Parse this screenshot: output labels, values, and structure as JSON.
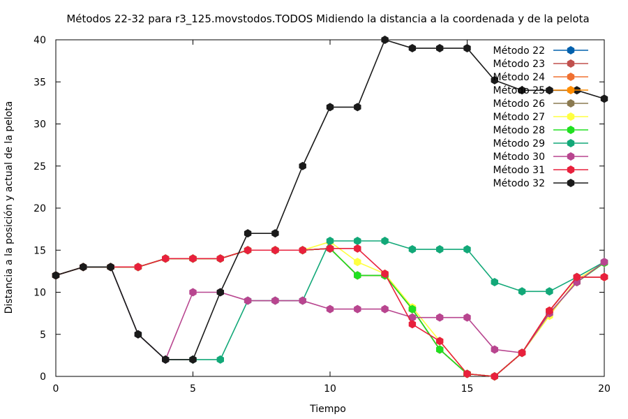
{
  "chart_data": {
    "type": "line",
    "title": "Métodos 22-32 para r3_125.movstodos.TODOS Midiendo la distancia a la coordenada y de la pelota",
    "xlabel": "Tiempo",
    "ylabel": "Distancia a la posición y actual de la pelota",
    "xlim": [
      0,
      20
    ],
    "ylim": [
      0,
      40
    ],
    "x_ticks": [
      0,
      5,
      10,
      15,
      20
    ],
    "y_ticks": [
      0,
      5,
      10,
      15,
      20,
      25,
      30,
      35,
      40
    ],
    "grid": false,
    "legend_position": "top-right",
    "x": [
      0,
      1,
      2,
      3,
      4,
      5,
      6,
      7,
      8,
      9,
      10,
      11,
      12,
      13,
      14,
      15,
      16,
      17,
      18,
      19,
      20
    ],
    "series": [
      {
        "name": "Método 22",
        "color": "#0060ad",
        "values": [
          12,
          13,
          13,
          13,
          14,
          14,
          14,
          15,
          15,
          15,
          15.2,
          12,
          12,
          8,
          3.2,
          0.3,
          0,
          2.8,
          7.8,
          11.8,
          11.8
        ]
      },
      {
        "name": "Método 23",
        "color": "#c0504d",
        "values": [
          12,
          13,
          13,
          13,
          14,
          14,
          14,
          15,
          15,
          15,
          15.2,
          12,
          12,
          8,
          3.2,
          0.3,
          0,
          2.8,
          7.8,
          11.8,
          11.8
        ]
      },
      {
        "name": "Método 24",
        "color": "#f07030",
        "values": [
          12,
          13,
          13,
          13,
          14,
          14,
          14,
          15,
          15,
          15,
          15.2,
          12,
          12,
          8,
          3.2,
          0.3,
          0,
          2.8,
          7.8,
          11.8,
          11.8
        ]
      },
      {
        "name": "Método 25",
        "color": "#ff8c00",
        "values": [
          12,
          13,
          13,
          13,
          14,
          14,
          14,
          15,
          15,
          15,
          15.2,
          12,
          12,
          8,
          3.2,
          0.3,
          0,
          2.8,
          7.8,
          11.8,
          11.8
        ]
      },
      {
        "name": "Método 26",
        "color": "#8b7a50",
        "values": [
          12,
          13,
          13,
          13,
          14,
          14,
          14,
          15,
          15,
          15,
          15.2,
          12,
          12,
          8,
          3.2,
          0.3,
          0,
          2.8,
          7.5,
          11.2,
          13.5
        ]
      },
      {
        "name": "Método 27",
        "color": "#ffff40",
        "values": [
          12,
          13,
          13,
          13,
          14,
          14,
          14,
          15,
          15,
          15,
          16,
          13.6,
          12.2,
          8.2,
          4.2,
          0.3,
          0,
          2.8,
          7.2,
          11.5,
          13.5
        ]
      },
      {
        "name": "Método 28",
        "color": "#20e020",
        "values": [
          12,
          13,
          13,
          13,
          14,
          14,
          14,
          15,
          15,
          15,
          15.2,
          12,
          12,
          8,
          3.2,
          0.3,
          0,
          2.8,
          7.5,
          11.2,
          13.5
        ]
      },
      {
        "name": "Método 29",
        "color": "#12a878",
        "values": [
          12,
          13,
          13,
          5,
          2,
          2,
          2,
          9,
          9,
          9,
          16.1,
          16.1,
          16.1,
          15.1,
          15.1,
          15.1,
          11.2,
          10.1,
          10.1,
          11.8,
          13.6
        ]
      },
      {
        "name": "Método 30",
        "color": "#b8458f",
        "values": [
          12,
          13,
          13,
          5,
          2,
          10,
          10,
          9,
          9,
          9,
          8,
          8,
          8,
          7,
          7,
          7,
          3.2,
          2.8,
          7.5,
          11.2,
          13.6
        ]
      },
      {
        "name": "Método 31",
        "color": "#e8203c",
        "values": [
          12,
          13,
          13,
          13,
          14,
          14,
          14,
          15,
          15,
          15,
          15.2,
          15.2,
          12.2,
          6.2,
          4.2,
          0.3,
          0,
          2.8,
          7.8,
          11.8,
          11.8
        ]
      },
      {
        "name": "Método 32",
        "color": "#1a1a1a",
        "values": [
          12,
          13,
          13,
          5,
          2,
          2,
          10,
          17,
          17,
          25,
          32,
          32,
          40,
          39,
          39,
          39,
          35.2,
          34,
          34,
          34,
          33
        ]
      }
    ]
  }
}
